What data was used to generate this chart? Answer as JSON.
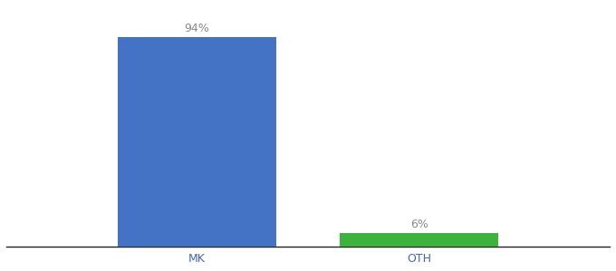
{
  "categories": [
    "MK",
    "OTH"
  ],
  "values": [
    94,
    6
  ],
  "bar_colors": [
    "#4472c4",
    "#3db33d"
  ],
  "value_labels": [
    "94%",
    "6%"
  ],
  "background_color": "#ffffff",
  "ylim": [
    0,
    108
  ],
  "bar_width": 0.25,
  "label_fontsize": 9,
  "tick_fontsize": 9
}
